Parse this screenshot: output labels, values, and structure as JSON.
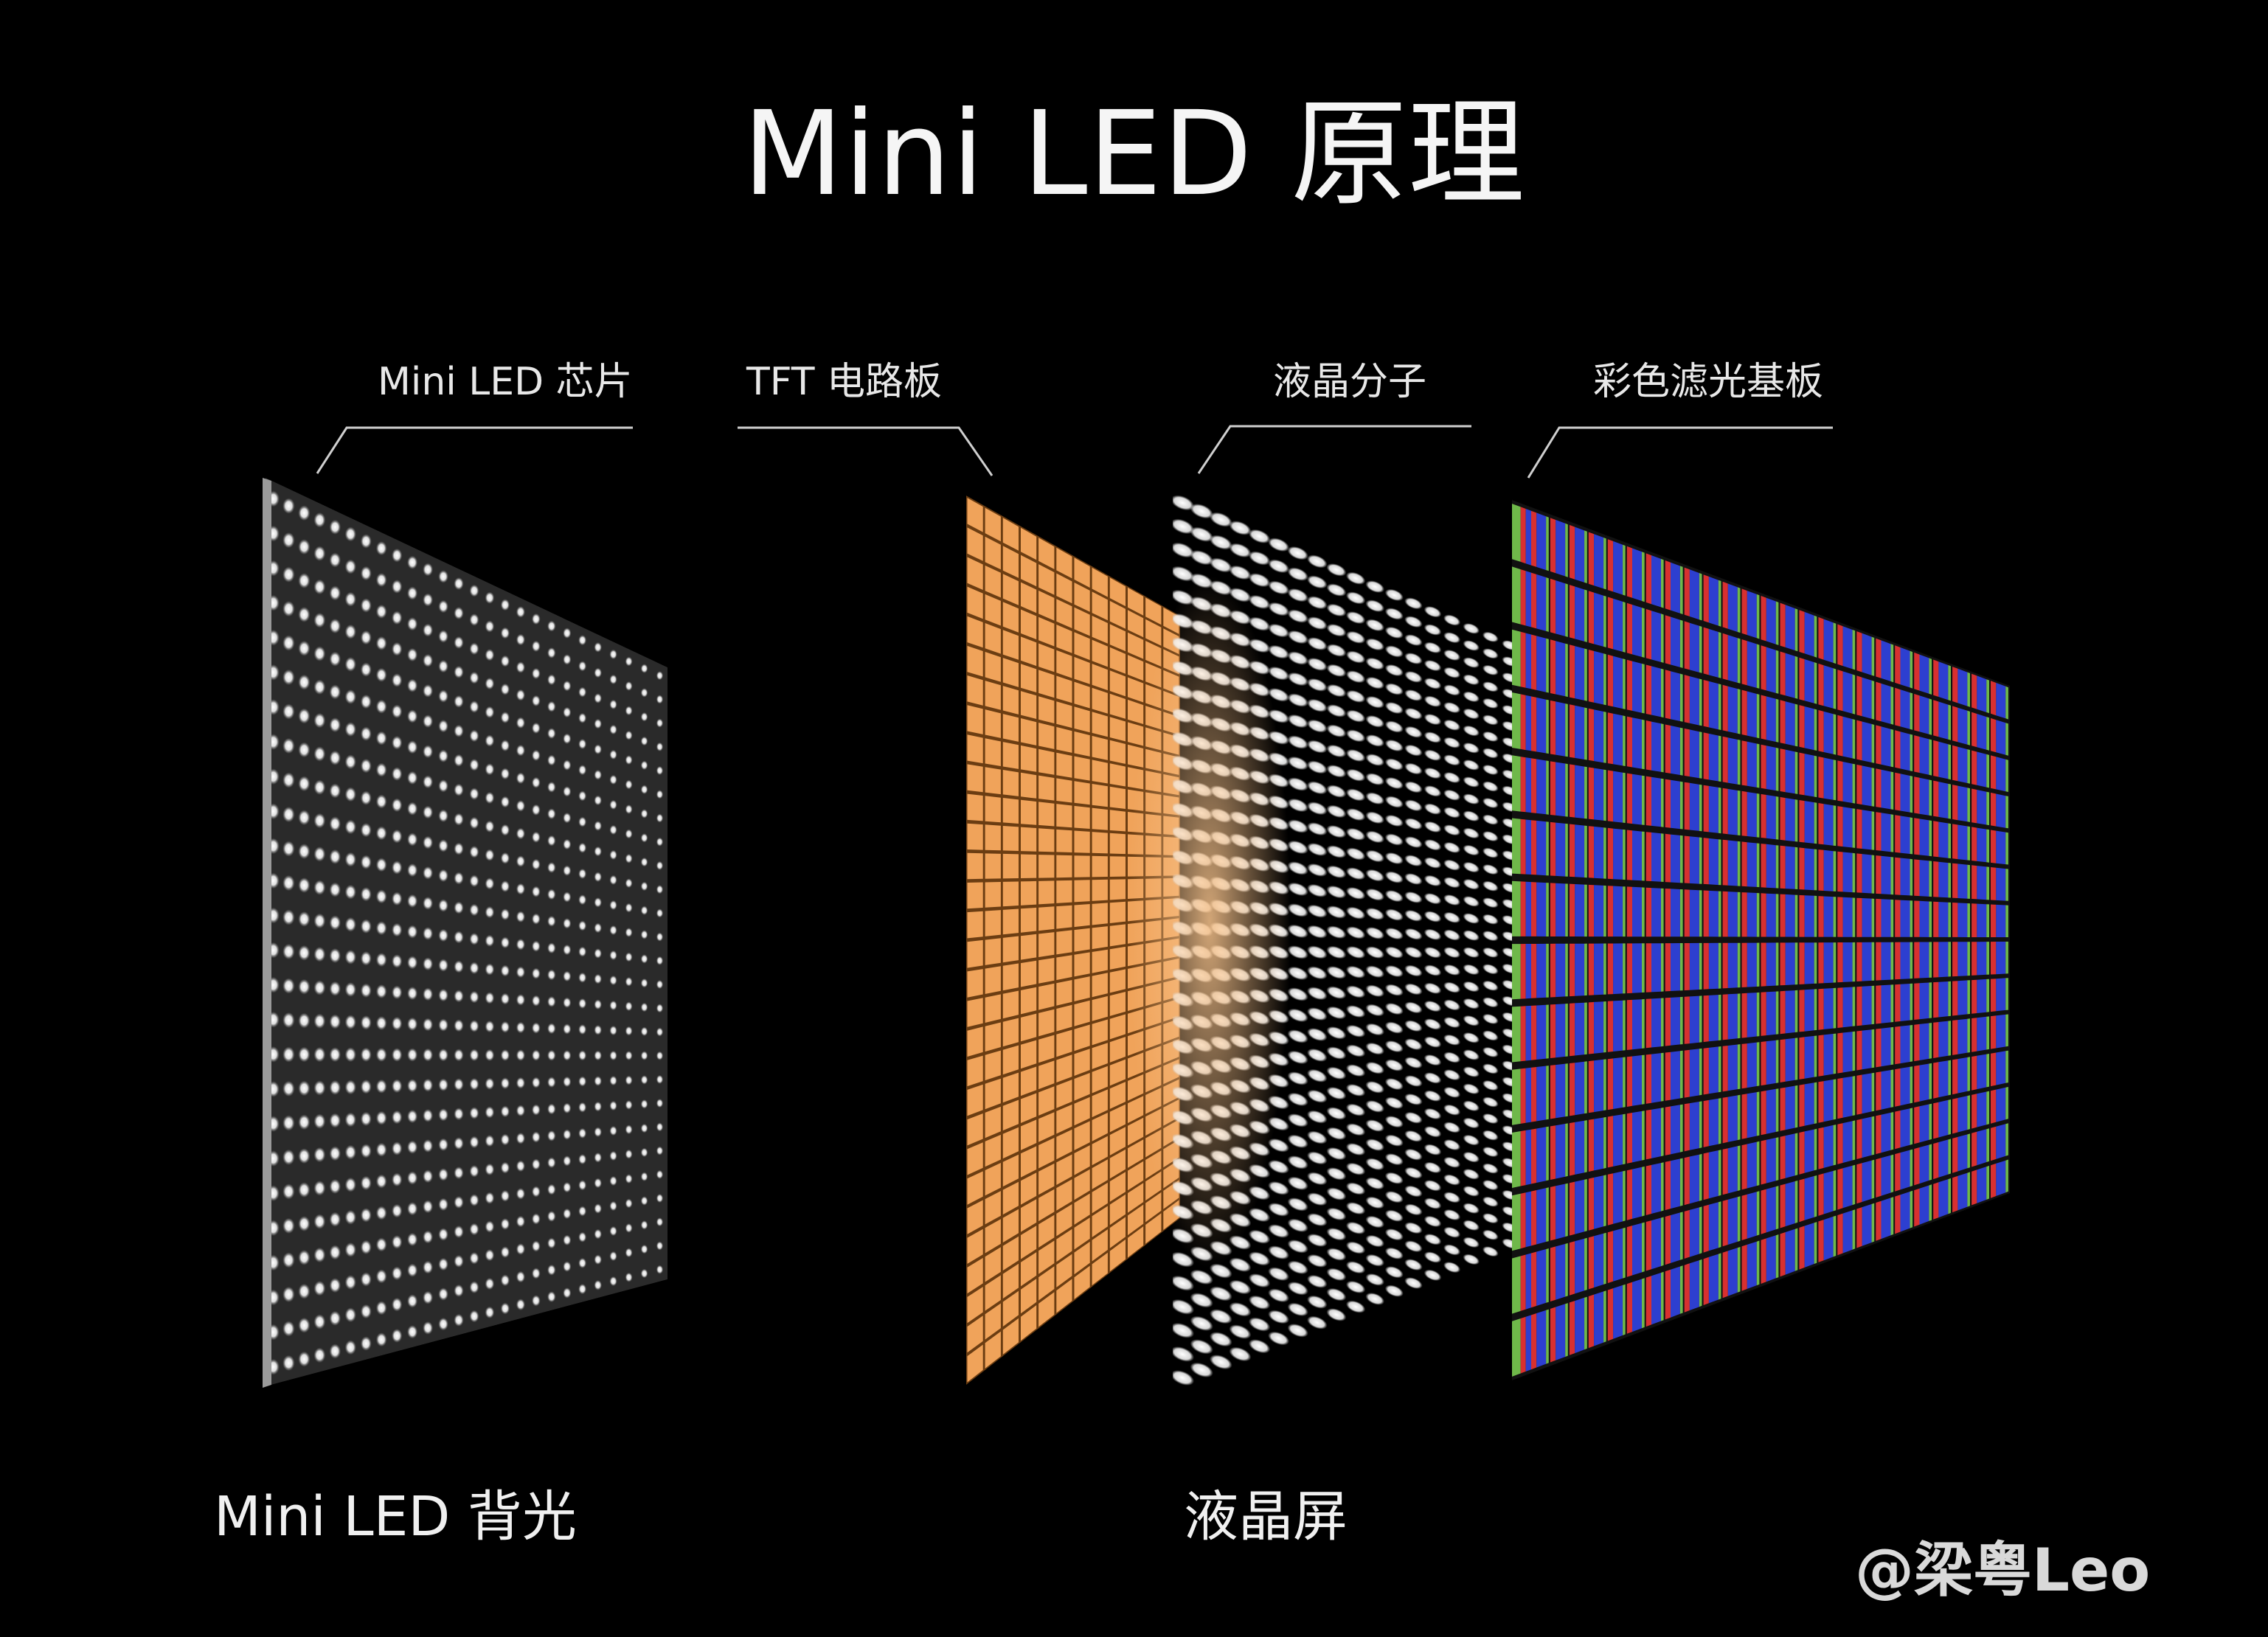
{
  "title": "Mini LED 原理",
  "layers": [
    {
      "id": "backlight",
      "label": "Mini LED 芯片",
      "color": "#dcdcdc"
    },
    {
      "id": "tft",
      "label": "TFT 电路板",
      "color": "#f0a35a"
    },
    {
      "id": "liquid-crystal",
      "label": "液晶分子",
      "color": "#f2f2f2"
    },
    {
      "id": "color-filter",
      "label": "彩色滤光基板",
      "colors": [
        "#6fb84a",
        "#d83030",
        "#2d3fd0"
      ]
    }
  ],
  "captions": {
    "backlight": "Mini LED 背光",
    "lcd": "液晶屏"
  },
  "watermark": "@梁粤Leo"
}
